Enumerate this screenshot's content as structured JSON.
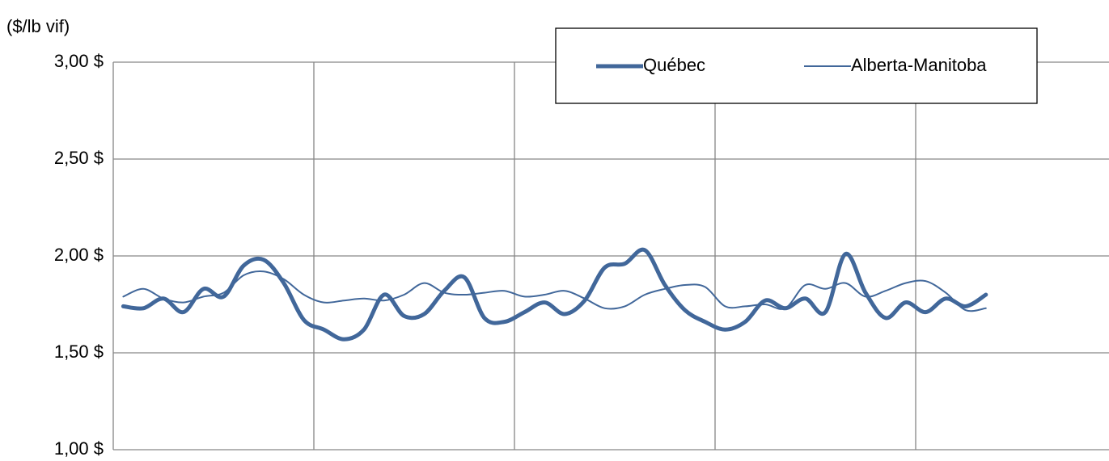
{
  "chart_data": {
    "type": "line",
    "y_axis_label": "($/lb vif)",
    "categories": [
      null,
      null,
      null,
      null,
      null,
      null,
      null,
      null,
      null,
      null,
      null,
      null,
      null,
      null,
      null,
      null,
      null,
      null,
      null,
      null,
      null,
      null,
      null,
      null,
      null,
      null,
      null,
      null,
      null,
      null,
      null,
      null,
      null,
      null,
      null,
      null,
      null,
      null,
      null,
      null,
      null,
      null,
      null,
      null,
      null,
      null,
      null,
      null,
      null,
      null
    ],
    "series": [
      {
        "name": "Québec",
        "color": "#41679a",
        "width": 5,
        "values": [
          1.74,
          1.73,
          1.78,
          1.71,
          1.83,
          1.79,
          1.95,
          1.98,
          1.86,
          1.67,
          1.62,
          1.57,
          1.62,
          1.8,
          1.69,
          1.7,
          1.82,
          1.89,
          1.68,
          1.66,
          1.71,
          1.76,
          1.7,
          1.77,
          1.94,
          1.96,
          2.03,
          1.85,
          1.72,
          1.66,
          1.62,
          1.66,
          1.77,
          1.73,
          1.78,
          1.71,
          2.01,
          1.81,
          1.68,
          1.76,
          1.71,
          1.78,
          1.74,
          1.8,
          null,
          null,
          null,
          null,
          null,
          null
        ]
      },
      {
        "name": "Alberta-Manitoba",
        "color": "#41679a",
        "width": 2,
        "values": [
          1.79,
          1.83,
          1.78,
          1.76,
          1.79,
          1.81,
          1.9,
          1.92,
          1.88,
          1.8,
          1.76,
          1.77,
          1.78,
          1.77,
          1.8,
          1.86,
          1.81,
          1.8,
          1.81,
          1.82,
          1.79,
          1.8,
          1.82,
          1.78,
          1.73,
          1.74,
          1.8,
          1.83,
          1.85,
          1.84,
          1.74,
          1.74,
          1.75,
          1.73,
          1.85,
          1.83,
          1.86,
          1.79,
          1.82,
          1.86,
          1.87,
          1.81,
          1.72,
          1.73,
          null,
          null,
          null,
          null,
          null,
          null
        ]
      }
    ],
    "ylim": [
      1,
      3
    ],
    "yticks": [
      {
        "value": 1,
        "label": "1,00 $"
      },
      {
        "value": 1.5,
        "label": "1,50 $"
      },
      {
        "value": 2,
        "label": "2,00 $"
      },
      {
        "value": 2.5,
        "label": "2,50 $"
      },
      {
        "value": 3,
        "label": "3,00 $"
      }
    ],
    "grid": true,
    "legend": "top-right"
  }
}
